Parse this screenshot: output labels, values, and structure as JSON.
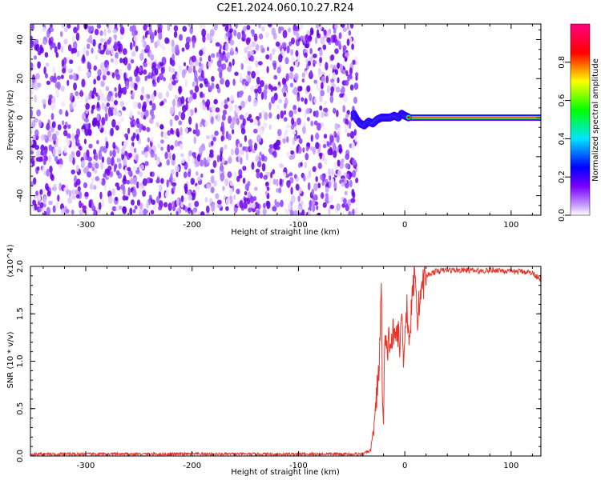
{
  "title": "C2E1.2024.060.10.27.R24",
  "chart_data": [
    {
      "type": "heatmap",
      "xlabel": "Height of straight line (km)",
      "ylabel": "Frequency (Hz)",
      "xlim": [
        -352,
        128
      ],
      "ylim": [
        -50,
        48
      ],
      "x_ticks": [
        -300,
        -200,
        -100,
        0,
        100
      ],
      "x_tick_labels": [
        "-300",
        "-200",
        "-100",
        "0",
        "100"
      ],
      "y_ticks": [
        -40,
        -20,
        0,
        20,
        40
      ],
      "y_tick_labels": [
        "-40",
        "-20",
        "0",
        "20",
        "40"
      ],
      "noise_region_x": [
        -352,
        -45
      ],
      "signal_track": {
        "x": [
          -48,
          -45,
          -42,
          -38,
          -34,
          -30,
          -26,
          -22,
          -18,
          -14,
          -10,
          -6,
          -3,
          0,
          4,
          8,
          20,
          60,
          128
        ],
        "frequency": [
          2,
          -1,
          -3,
          -4,
          -2,
          -3,
          -1,
          0,
          0,
          0,
          1,
          0,
          2,
          1,
          0,
          -1,
          0,
          0,
          0
        ]
      },
      "colorbar": {
        "label": "Normalized spectral amplitude",
        "range": [
          0.0,
          1.0
        ],
        "ticks": [
          0.0,
          0.2,
          0.4,
          0.6,
          0.8
        ],
        "tick_labels": [
          "0.0",
          "0.2",
          "0.4",
          "0.6",
          "0.8"
        ],
        "colormap": [
          "#ffffff",
          "#7a00ff",
          "#0000ff",
          "#00e5ff",
          "#00ff00",
          "#ffff00",
          "#ff0000",
          "#ff0080"
        ]
      },
      "grid": false
    },
    {
      "type": "line",
      "xlabel": "Height of straight line (km)",
      "ylabel": "SNR (10 * v/v)",
      "y_multiplier_label": "(x10^4)",
      "xlim": [
        -352,
        128
      ],
      "ylim": [
        0,
        2.0
      ],
      "x_ticks": [
        -300,
        -200,
        -100,
        0,
        100
      ],
      "x_tick_labels": [
        "-300",
        "-200",
        "-100",
        "0",
        "100"
      ],
      "y_ticks": [
        0.0,
        0.5,
        1.0,
        1.5,
        2.0
      ],
      "y_tick_labels": [
        "0.0",
        "0.5",
        "1.0",
        "1.5",
        "2.0"
      ],
      "series": [
        {
          "color": "#e8352a",
          "x": [
            -352,
            -300,
            -250,
            -200,
            -150,
            -100,
            -60,
            -40,
            -32,
            -27,
            -24,
            -22,
            -21,
            -20,
            -19,
            -18,
            -17,
            -15,
            -13,
            -11,
            -9,
            -7,
            -5,
            -3,
            -1,
            0,
            2,
            4,
            6,
            8,
            10,
            12,
            14,
            16,
            18,
            20,
            25,
            30,
            40,
            50,
            60,
            70,
            80,
            90,
            100,
            110,
            120,
            128
          ],
          "y": [
            0.02,
            0.02,
            0.02,
            0.02,
            0.02,
            0.02,
            0.02,
            0.02,
            0.06,
            0.55,
            1.0,
            1.78,
            0.6,
            0.3,
            1.1,
            1.2,
            1.05,
            1.25,
            1.15,
            1.3,
            1.2,
            1.4,
            1.1,
            1.5,
            1.05,
            1.3,
            1.6,
            1.2,
            1.5,
            1.8,
            2.0,
            1.4,
            1.7,
            1.75,
            1.85,
            1.9,
            1.93,
            1.95,
            1.96,
            1.96,
            1.96,
            1.95,
            1.96,
            1.96,
            1.94,
            1.95,
            1.93,
            1.87
          ]
        }
      ],
      "grid": false
    }
  ]
}
